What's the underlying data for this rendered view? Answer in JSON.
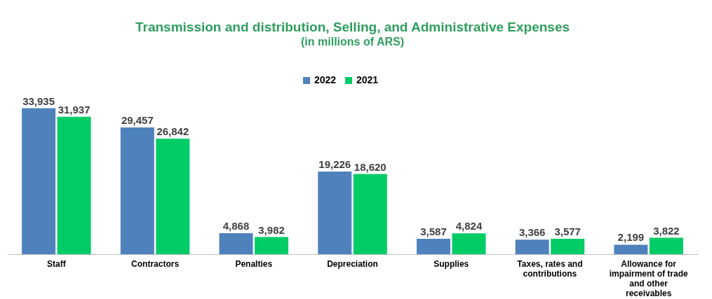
{
  "chart_data": {
    "type": "bar",
    "title": "Transmission and distribution, Selling, and Administrative Expenses",
    "subtitle": "(in millions of ARS)",
    "categories": [
      "Staff",
      "Contractors",
      "Penalties",
      "Depreciation",
      "Supplies",
      "Taxes, rates and contributions",
      "Allowance for impairment of trade and other receivables"
    ],
    "series": [
      {
        "name": "2022",
        "color": "#4f81bd",
        "values": [
          33935,
          29457,
          4868,
          19226,
          3587,
          3366,
          2199
        ],
        "value_labels": [
          "33,935",
          "29,457",
          "4,868",
          "19,226",
          "3,587",
          "3,366",
          "2,199"
        ]
      },
      {
        "name": "2021",
        "color": "#00cc66",
        "values": [
          31937,
          26842,
          3982,
          18620,
          4824,
          3577,
          3822
        ],
        "value_labels": [
          "31,937",
          "26,842",
          "3,982",
          "18,620",
          "4,824",
          "3,577",
          "3,822"
        ]
      }
    ],
    "legend": "top",
    "grid": false
  }
}
